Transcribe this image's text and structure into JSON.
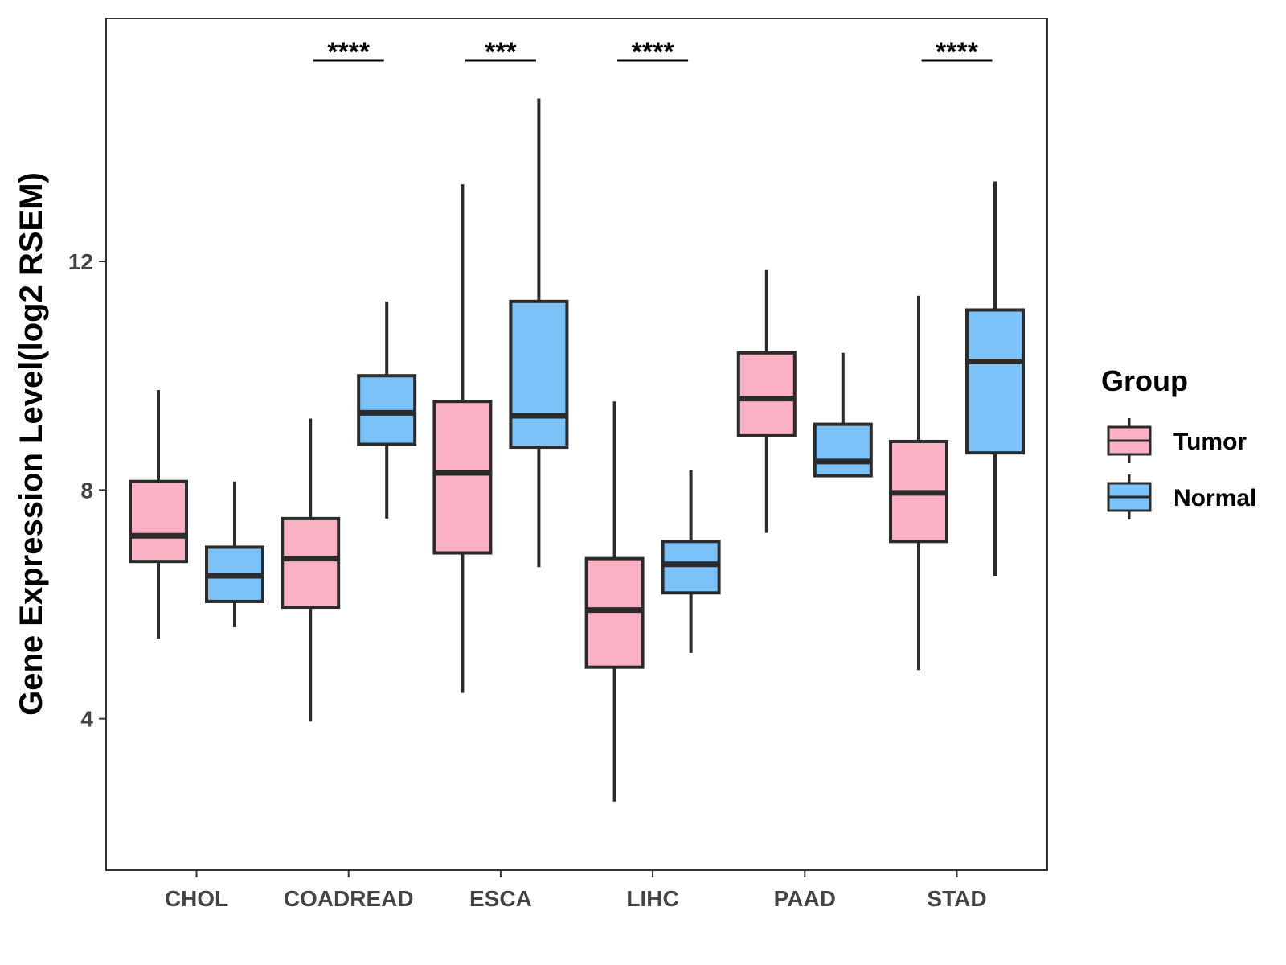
{
  "chart_data": {
    "type": "box",
    "title": "",
    "xlabel": "",
    "ylabel": "Gene Expression Level(log2 RSEM)",
    "ylim": [
      1.35,
      16.25
    ],
    "yticks": [
      4,
      8,
      12
    ],
    "grid": false,
    "legend": {
      "title": "Group",
      "position": "right",
      "entries": [
        {
          "name": "Tumor",
          "color": "#FBB1C3"
        },
        {
          "name": "Normal",
          "color": "#7AC2F8"
        }
      ]
    },
    "categories": [
      "CHOL",
      "COADREAD",
      "ESCA",
      "LIHC",
      "PAAD",
      "STAD"
    ],
    "series": [
      {
        "name": "Tumor",
        "color": "#FBB1C3",
        "boxes": [
          {
            "min": 5.4,
            "q1": 6.75,
            "median": 7.2,
            "q3": 8.15,
            "max": 9.75
          },
          {
            "min": 3.95,
            "q1": 5.95,
            "median": 6.8,
            "q3": 7.5,
            "max": 9.25
          },
          {
            "min": 4.45,
            "q1": 6.9,
            "median": 8.3,
            "q3": 9.55,
            "max": 13.35
          },
          {
            "min": 2.55,
            "q1": 4.9,
            "median": 5.9,
            "q3": 6.8,
            "max": 9.55
          },
          {
            "min": 7.25,
            "q1": 8.95,
            "median": 9.6,
            "q3": 10.4,
            "max": 11.85
          },
          {
            "min": 4.85,
            "q1": 7.1,
            "median": 7.95,
            "q3": 8.85,
            "max": 11.4
          }
        ]
      },
      {
        "name": "Normal",
        "color": "#7AC2F8",
        "boxes": [
          {
            "min": 5.6,
            "q1": 6.05,
            "median": 6.5,
            "q3": 7.0,
            "max": 8.15
          },
          {
            "min": 7.5,
            "q1": 8.8,
            "median": 9.35,
            "q3": 10.0,
            "max": 11.3
          },
          {
            "min": 6.65,
            "q1": 8.75,
            "median": 9.3,
            "q3": 11.3,
            "max": 14.85
          },
          {
            "min": 5.15,
            "q1": 6.2,
            "median": 6.7,
            "q3": 7.1,
            "max": 8.35
          },
          {
            "min": 8.25,
            "q1": 8.25,
            "median": 8.5,
            "q3": 9.15,
            "max": 10.4
          },
          {
            "min": 6.5,
            "q1": 8.65,
            "median": 10.25,
            "q3": 11.15,
            "max": 13.4
          }
        ]
      }
    ],
    "significance": [
      {
        "category": "COADREAD",
        "label": "****"
      },
      {
        "category": "ESCA",
        "label": "***"
      },
      {
        "category": "LIHC",
        "label": "****"
      },
      {
        "category": "STAD",
        "label": "****"
      }
    ]
  }
}
